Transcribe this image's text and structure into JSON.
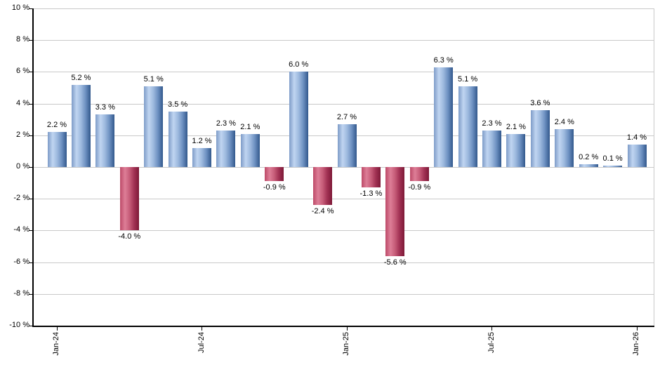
{
  "chart_data": {
    "type": "bar",
    "title": "",
    "unit": "%",
    "values": [
      2.2,
      5.2,
      3.3,
      -4.0,
      5.1,
      3.5,
      1.2,
      2.3,
      2.1,
      -0.9,
      6.0,
      -2.4,
      2.7,
      -1.3,
      -5.6,
      -0.9,
      6.3,
      5.1,
      2.3,
      2.1,
      3.6,
      2.4,
      0.2,
      0.1,
      1.4
    ],
    "bar_labels": [
      "2.2 %",
      "5.2 %",
      "3.3 %",
      "-4.0 %",
      "5.1 %",
      "3.5 %",
      "1.2 %",
      "2.3 %",
      "2.1 %",
      "-0.9 %",
      "6.0 %",
      "-2.4 %",
      "2.7 %",
      "-1.3 %",
      "-5.6 %",
      "-0.9 %",
      "6.3 %",
      "5.1 %",
      "2.3 %",
      "2.1 %",
      "3.6 %",
      "2.4 %",
      "0.2 %",
      "0.1 %",
      "1.4 %"
    ],
    "ylim": [
      -10,
      10
    ],
    "y_tick_values": [
      10,
      8,
      6,
      4,
      2,
      0,
      -2,
      -4,
      -6,
      -8,
      -10
    ],
    "y_tick_labels": [
      "10 %",
      "8 %",
      "6 %",
      "4 %",
      "2 %",
      "0 %",
      "-2 %",
      "-4 %",
      "-6 %",
      "-8 %",
      "-10 %"
    ],
    "x_tick_labels": [
      "Jan-24",
      "Jul-24",
      "Jan-25",
      "Jul-25",
      "Jan-26"
    ],
    "x_tick_indices": [
      0,
      6,
      12,
      18,
      24
    ],
    "grid": "horizontal",
    "legend": "none",
    "colors": {
      "positive_gradient": [
        "#7e9cc8",
        "#c0d5f1",
        "#9db9de",
        "#6d90c1",
        "#32588c"
      ],
      "negative_gradient": [
        "#bd4a68",
        "#dd7e97",
        "#c75d79",
        "#a23254",
        "#7d1937"
      ],
      "gridline": "#c9c9c9",
      "axis": "#000000",
      "label_text": "#000000"
    }
  }
}
